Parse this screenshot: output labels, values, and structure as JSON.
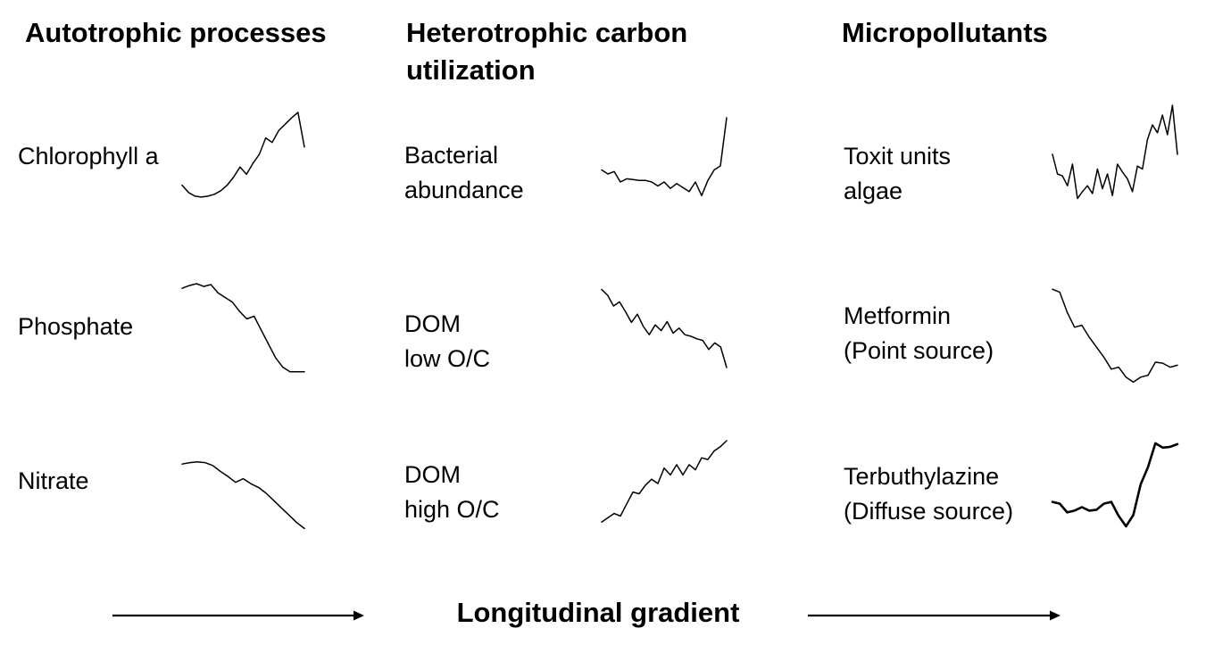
{
  "columns": [
    {
      "title_lines": [
        "Autotrophic processes"
      ],
      "rows": [
        {
          "label_lines": [
            "Chlorophyll a"
          ],
          "values": [
            0.18,
            0.1,
            0.06,
            0.05,
            0.06,
            0.08,
            0.12,
            0.18,
            0.27,
            0.38,
            0.3,
            0.42,
            0.52,
            0.7,
            0.65,
            0.78,
            0.85,
            0.92,
            0.98,
            0.6
          ]
        },
        {
          "label_lines": [
            "Phosphate"
          ],
          "values": [
            0.95,
            0.98,
            1.0,
            0.97,
            0.99,
            0.9,
            0.85,
            0.8,
            0.7,
            0.62,
            0.65,
            0.5,
            0.35,
            0.2,
            0.1,
            0.05,
            0.05,
            0.05
          ]
        },
        {
          "label_lines": [
            "Nitrate"
          ],
          "values": [
            0.9,
            0.92,
            0.93,
            0.92,
            0.88,
            0.8,
            0.73,
            0.65,
            0.7,
            0.63,
            0.58,
            0.5,
            0.4,
            0.3,
            0.2,
            0.1,
            0.02
          ]
        }
      ]
    },
    {
      "title_lines": [
        "Heterotrophic carbon",
        "utilization"
      ],
      "rows": [
        {
          "label_lines": [
            "Bacterial",
            "abundance"
          ],
          "values": [
            0.35,
            0.3,
            0.33,
            0.2,
            0.24,
            0.23,
            0.22,
            0.22,
            0.2,
            0.15,
            0.2,
            0.12,
            0.18,
            0.13,
            0.08,
            0.2,
            0.03,
            0.22,
            0.35,
            0.4,
            1.0
          ]
        },
        {
          "label_lines": [
            "DOM",
            "low O/C"
          ],
          "values": [
            0.95,
            0.88,
            0.75,
            0.8,
            0.68,
            0.55,
            0.65,
            0.5,
            0.4,
            0.52,
            0.45,
            0.56,
            0.42,
            0.48,
            0.4,
            0.38,
            0.35,
            0.33,
            0.22,
            0.3,
            0.25,
            0.0
          ]
        },
        {
          "label_lines": [
            "DOM",
            "high O/C"
          ],
          "values": [
            0.05,
            0.1,
            0.15,
            0.12,
            0.26,
            0.4,
            0.38,
            0.48,
            0.55,
            0.5,
            0.68,
            0.6,
            0.72,
            0.6,
            0.72,
            0.66,
            0.8,
            0.78,
            0.88,
            0.93,
            1.0
          ]
        }
      ]
    },
    {
      "title_lines": [
        "Micropollutants"
      ],
      "rows": [
        {
          "label_lines": [
            "Toxit units",
            "algae"
          ],
          "values": [
            0.5,
            0.3,
            0.28,
            0.18,
            0.4,
            0.05,
            0.12,
            0.18,
            0.1,
            0.35,
            0.15,
            0.3,
            0.08,
            0.4,
            0.32,
            0.25,
            0.12,
            0.38,
            0.35,
            0.65,
            0.8,
            0.72,
            0.9,
            0.7,
            1.0,
            0.5
          ]
        },
        {
          "label_lines": [
            "Metformin",
            "(Point source)"
          ],
          "values": [
            0.98,
            0.95,
            0.75,
            0.6,
            0.62,
            0.5,
            0.4,
            0.3,
            0.18,
            0.2,
            0.1,
            0.05,
            0.1,
            0.12,
            0.25,
            0.24,
            0.2,
            0.22
          ]
        },
        {
          "label_lines": [
            "Terbuthylazine",
            "(Diffuse source)"
          ],
          "values": [
            0.3,
            0.28,
            0.18,
            0.2,
            0.24,
            0.2,
            0.21,
            0.28,
            0.3,
            0.14,
            0.02,
            0.15,
            0.5,
            0.7,
            0.97,
            0.92,
            0.93,
            0.96
          ]
        }
      ]
    }
  ],
  "footer": {
    "title": "Longitudinal gradient"
  }
}
